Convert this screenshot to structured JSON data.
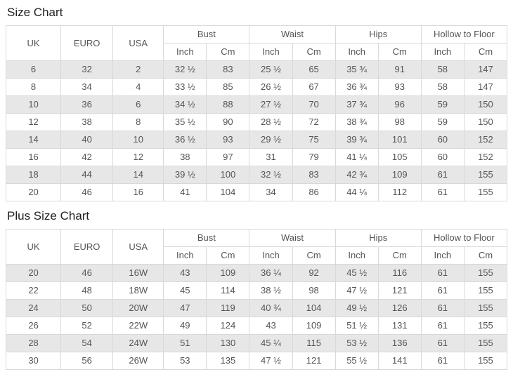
{
  "tables": [
    {
      "title": "Size Chart",
      "columns": {
        "uk": "UK",
        "euro": "EURO",
        "usa": "USA"
      },
      "groups": {
        "bust": "Bust",
        "waist": "Waist",
        "hips": "Hips",
        "hollow": "Hollow to Floor"
      },
      "units": {
        "inch": "Inch",
        "cm": "Cm"
      },
      "rows": [
        [
          "6",
          "32",
          "2",
          "32 ½",
          "83",
          "25 ½",
          "65",
          "35 ¾",
          "91",
          "58",
          "147"
        ],
        [
          "8",
          "34",
          "4",
          "33 ½",
          "85",
          "26 ½",
          "67",
          "36 ¾",
          "93",
          "58",
          "147"
        ],
        [
          "10",
          "36",
          "6",
          "34 ½",
          "88",
          "27 ½",
          "70",
          "37 ¾",
          "96",
          "59",
          "150"
        ],
        [
          "12",
          "38",
          "8",
          "35 ½",
          "90",
          "28 ½",
          "72",
          "38 ¾",
          "98",
          "59",
          "150"
        ],
        [
          "14",
          "40",
          "10",
          "36 ½",
          "93",
          "29 ½",
          "75",
          "39 ¾",
          "101",
          "60",
          "152"
        ],
        [
          "16",
          "42",
          "12",
          "38",
          "97",
          "31",
          "79",
          "41 ¼",
          "105",
          "60",
          "152"
        ],
        [
          "18",
          "44",
          "14",
          "39 ½",
          "100",
          "32 ½",
          "83",
          "42 ¾",
          "109",
          "61",
          "155"
        ],
        [
          "20",
          "46",
          "16",
          "41",
          "104",
          "34",
          "86",
          "44 ¼",
          "112",
          "61",
          "155"
        ]
      ]
    },
    {
      "title": "Plus Size Chart",
      "columns": {
        "uk": "UK",
        "euro": "EURO",
        "usa": "USA"
      },
      "groups": {
        "bust": "Bust",
        "waist": "Waist",
        "hips": "Hips",
        "hollow": "Hollow to Floor"
      },
      "units": {
        "inch": "Inch",
        "cm": "Cm"
      },
      "rows": [
        [
          "20",
          "46",
          "16W",
          "43",
          "109",
          "36 ¼",
          "92",
          "45 ½",
          "116",
          "61",
          "155"
        ],
        [
          "22",
          "48",
          "18W",
          "45",
          "114",
          "38 ½",
          "98",
          "47 ½",
          "121",
          "61",
          "155"
        ],
        [
          "24",
          "50",
          "20W",
          "47",
          "119",
          "40 ¾",
          "104",
          "49 ½",
          "126",
          "61",
          "155"
        ],
        [
          "26",
          "52",
          "22W",
          "49",
          "124",
          "43",
          "109",
          "51 ½",
          "131",
          "61",
          "155"
        ],
        [
          "28",
          "54",
          "24W",
          "51",
          "130",
          "45 ¼",
          "115",
          "53 ½",
          "136",
          "61",
          "155"
        ],
        [
          "30",
          "56",
          "26W",
          "53",
          "135",
          "47 ½",
          "121",
          "55 ½",
          "141",
          "61",
          "155"
        ]
      ]
    }
  ]
}
